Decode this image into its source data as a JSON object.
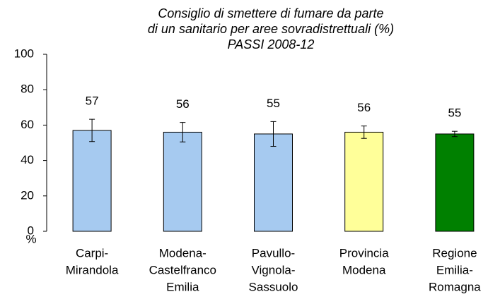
{
  "chart_data": {
    "type": "bar",
    "title": [
      "Consiglio di smettere di fumare da parte",
      "di un sanitario per aree sovradistrettuali (%)",
      "PASSI 2008-12"
    ],
    "y_label": "%",
    "categories": [
      [
        "Carpi-",
        "Mirandola"
      ],
      [
        "Modena-",
        "Castelfranco",
        "Emilia"
      ],
      [
        "Pavullo-",
        "Vignola-",
        "Sassuolo"
      ],
      [
        "Provincia",
        "Modena"
      ],
      [
        "Regione",
        "Emilia-",
        "Romagna"
      ]
    ],
    "series": [
      {
        "values": [
          57,
          56,
          55,
          56,
          55
        ],
        "errors": [
          6.3,
          5.5,
          7,
          3.5,
          1.5
        ],
        "colors": [
          "#a6caf0",
          "#a6caf0",
          "#a6caf0",
          "#ffff99",
          "#008000"
        ]
      }
    ],
    "ylim": [
      0,
      100
    ],
    "yticks": [
      0,
      20,
      40,
      60,
      80,
      100
    ]
  }
}
